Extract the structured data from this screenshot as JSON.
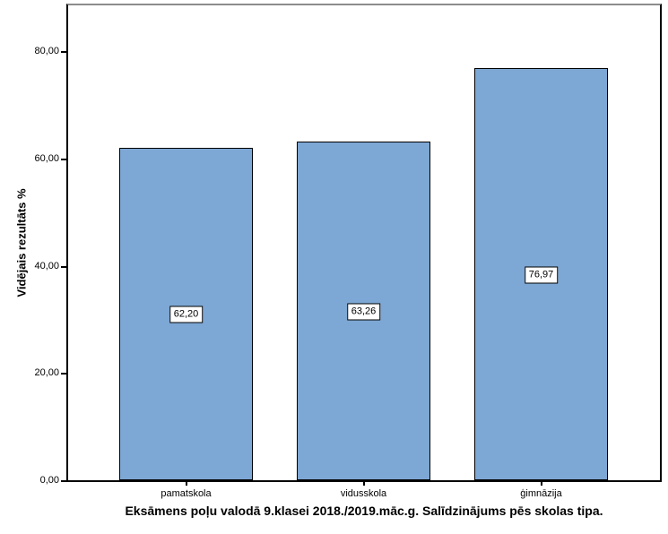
{
  "chart_data": {
    "type": "bar",
    "title": "Eksāmens poļu valodā 9.klasei 2018./2019.māc.g. Salīdzinājums pēs skolas tipa.",
    "ylabel": "Vidējais rezultāts %",
    "xlabel": "",
    "categories": [
      "pamatskola",
      "vidusskola",
      "ģimnāzija"
    ],
    "values": [
      62.2,
      63.26,
      76.97
    ],
    "value_labels": [
      "62,20",
      "63,26",
      "76,97"
    ],
    "yticks": [
      0,
      20,
      40,
      60,
      80
    ],
    "ytick_labels": [
      "0,00",
      "20,00",
      "40,00",
      "60,00",
      "80,00"
    ],
    "ylim": [
      0,
      88.8
    ],
    "grid": false,
    "legend": null,
    "bar_fill_color": "#7DA7D4",
    "bar_border_color": "#000000",
    "frame_top_color": "#8c8c8c"
  }
}
